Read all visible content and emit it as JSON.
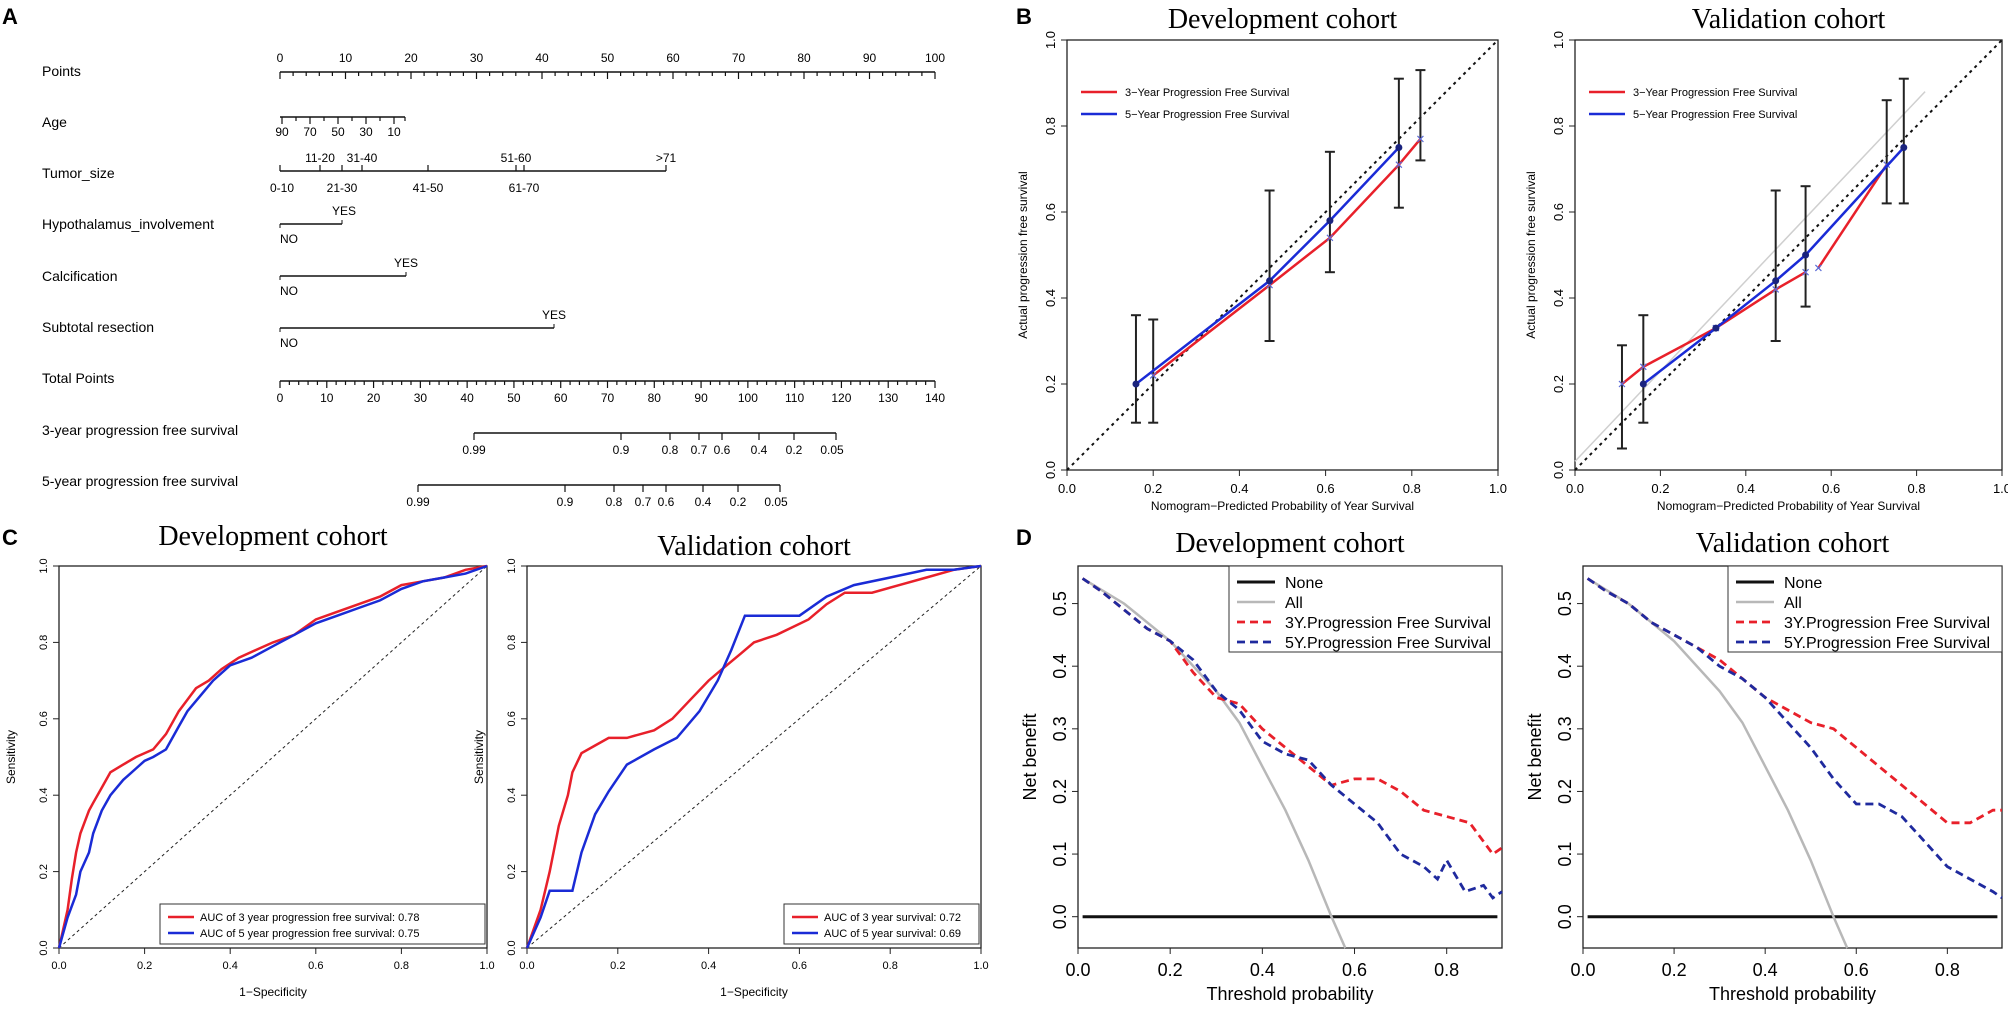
{
  "colors": {
    "red": "#e8202a",
    "blue": "#1a2bd6",
    "black": "#111111",
    "gray": "#b8b8b8",
    "navy": "#1a237e"
  },
  "panels": {
    "A": "A",
    "B": "B",
    "C": "C",
    "D": "D"
  },
  "nomogram": {
    "rows": [
      {
        "label": "Points"
      },
      {
        "label": "Age"
      },
      {
        "label": "Tumor_size"
      },
      {
        "label": "Hypothalamus_involvement"
      },
      {
        "label": "Calcification"
      },
      {
        "label": "Subtotal resection"
      },
      {
        "label": "Total Points"
      },
      {
        "label": "3-year progression free survival"
      },
      {
        "label": "5-year progression free survival"
      }
    ],
    "points_labels": [
      "0",
      "10",
      "20",
      "30",
      "40",
      "50",
      "60",
      "70",
      "80",
      "90",
      "100"
    ],
    "age_ticks": [
      "90",
      "70",
      "50",
      "30",
      "10"
    ],
    "tumor_upper": [
      "11-20",
      "31-40",
      "51-60",
      ">71"
    ],
    "tumor_lower": [
      "0-10",
      "21-30",
      "41-50",
      "61-70"
    ],
    "hypo": {
      "no": "NO",
      "yes": "YES"
    },
    "calc": {
      "no": "NO",
      "yes": "YES"
    },
    "subtotal": {
      "no": "NO",
      "yes": "YES"
    },
    "total_labels": [
      "0",
      "10",
      "20",
      "30",
      "40",
      "50",
      "60",
      "70",
      "80",
      "90",
      "100",
      "110",
      "120",
      "130",
      "140"
    ],
    "pfs3_ticks": [
      "0.99",
      "0.9",
      "0.8",
      "0.7",
      "0.6",
      "0.4",
      "0.2",
      "0.05"
    ],
    "pfs5_ticks": [
      "0.99",
      "0.9",
      "0.8",
      "0.7",
      "0.6",
      "0.4",
      "0.2",
      "0.05"
    ]
  },
  "chart_data": [
    {
      "id": "B-dev",
      "type": "line",
      "title": "Development cohort",
      "xlabel": "Nomogram−Predicted Probability of Year Survival",
      "ylabel": "Actual progression free survival",
      "xlim": [
        0,
        1
      ],
      "ylim": [
        0,
        1
      ],
      "xticks": [
        "0.0",
        "0.2",
        "0.4",
        "0.6",
        "0.8",
        "1.0"
      ],
      "yticks": [
        "0.0",
        "0.2",
        "0.4",
        "0.6",
        "0.8",
        "1.0"
      ],
      "legend": [
        "3−Year Progression Free Survival",
        "5−Year Progression Free Survival"
      ],
      "series": [
        {
          "name": "3-Year",
          "x": [
            0.2,
            0.47,
            0.61,
            0.77,
            0.82
          ],
          "y": [
            0.22,
            0.43,
            0.54,
            0.71,
            0.77
          ]
        },
        {
          "name": "5-Year",
          "x": [
            0.16,
            0.47,
            0.61,
            0.77
          ],
          "y": [
            0.2,
            0.44,
            0.58,
            0.75
          ]
        }
      ],
      "errorbars": [
        {
          "x": 0.16,
          "lo": 0.11,
          "hi": 0.36
        },
        {
          "x": 0.2,
          "lo": 0.11,
          "hi": 0.35
        },
        {
          "x": 0.47,
          "lo": 0.3,
          "hi": 0.65
        },
        {
          "x": 0.61,
          "lo": 0.46,
          "hi": 0.74
        },
        {
          "x": 0.77,
          "lo": 0.61,
          "hi": 0.91
        },
        {
          "x": 0.82,
          "lo": 0.72,
          "hi": 0.93
        }
      ]
    },
    {
      "id": "B-val",
      "type": "line",
      "title": "Validation cohort",
      "xlabel": "Nomogram−Predicted Probability of Year Survival",
      "ylabel": "Actual progression free survival",
      "xlim": [
        0,
        1
      ],
      "ylim": [
        0,
        1
      ],
      "xticks": [
        "0.0",
        "0.2",
        "0.4",
        "0.6",
        "0.8",
        "1.0"
      ],
      "yticks": [
        "0.0",
        "0.2",
        "0.4",
        "0.6",
        "0.8",
        "1.0"
      ],
      "legend": [
        "3−Year Progression Free Survival",
        "5−Year Progression Free Survival"
      ],
      "series": [
        {
          "name": "3-Year",
          "x": [
            0.11,
            0.16,
            0.33,
            0.47,
            0.54
          ],
          "y": [
            0.2,
            0.24,
            0.33,
            0.42,
            0.46
          ]
        },
        {
          "name": "3-Year-b",
          "x": [
            0.57,
            0.73
          ],
          "y": [
            0.47,
            0.71
          ]
        },
        {
          "name": "5-Year",
          "x": [
            0.16,
            0.33,
            0.47,
            0.54,
            0.77
          ],
          "y": [
            0.2,
            0.33,
            0.44,
            0.5,
            0.75
          ]
        }
      ],
      "errorbars": [
        {
          "x": 0.11,
          "lo": 0.05,
          "hi": 0.29
        },
        {
          "x": 0.16,
          "lo": 0.11,
          "hi": 0.36
        },
        {
          "x": 0.47,
          "lo": 0.3,
          "hi": 0.65
        },
        {
          "x": 0.54,
          "lo": 0.38,
          "hi": 0.66
        },
        {
          "x": 0.73,
          "lo": 0.62,
          "hi": 0.86
        },
        {
          "x": 0.77,
          "lo": 0.62,
          "hi": 0.91
        }
      ]
    },
    {
      "id": "C-dev",
      "type": "line",
      "title": "Development cohort",
      "xlabel": "1−Specificity",
      "ylabel": "Sensitivity",
      "xlim": [
        0,
        1
      ],
      "ylim": [
        0,
        1
      ],
      "xticks": [
        "0.0",
        "0.2",
        "0.4",
        "0.6",
        "0.8",
        "1.0"
      ],
      "yticks": [
        "0.0",
        "0.2",
        "0.4",
        "0.6",
        "0.8",
        "1.0"
      ],
      "legend": [
        "AUC of 3 year progression free survival:  0.78",
        "AUC of 5 year progression free survival:  0.75"
      ],
      "series": [
        {
          "name": "3-year",
          "x": [
            0,
            0.02,
            0.03,
            0.04,
            0.05,
            0.06,
            0.07,
            0.08,
            0.1,
            0.12,
            0.15,
            0.18,
            0.22,
            0.25,
            0.28,
            0.3,
            0.32,
            0.35,
            0.38,
            0.42,
            0.46,
            0.5,
            0.55,
            0.6,
            0.65,
            0.7,
            0.75,
            0.8,
            0.85,
            0.9,
            0.95,
            1.0
          ],
          "y": [
            0,
            0.1,
            0.18,
            0.25,
            0.3,
            0.33,
            0.36,
            0.38,
            0.42,
            0.46,
            0.48,
            0.5,
            0.52,
            0.56,
            0.62,
            0.65,
            0.68,
            0.7,
            0.73,
            0.76,
            0.78,
            0.8,
            0.82,
            0.86,
            0.88,
            0.9,
            0.92,
            0.95,
            0.96,
            0.97,
            0.99,
            1.0
          ]
        },
        {
          "name": "5-year",
          "x": [
            0,
            0.02,
            0.04,
            0.05,
            0.07,
            0.08,
            0.1,
            0.12,
            0.15,
            0.18,
            0.2,
            0.22,
            0.25,
            0.28,
            0.3,
            0.33,
            0.36,
            0.4,
            0.45,
            0.5,
            0.55,
            0.6,
            0.65,
            0.7,
            0.75,
            0.8,
            0.85,
            0.9,
            0.95,
            1.0
          ],
          "y": [
            0,
            0.08,
            0.14,
            0.2,
            0.25,
            0.3,
            0.36,
            0.4,
            0.44,
            0.47,
            0.49,
            0.5,
            0.52,
            0.58,
            0.62,
            0.66,
            0.7,
            0.74,
            0.76,
            0.79,
            0.82,
            0.85,
            0.87,
            0.89,
            0.91,
            0.94,
            0.96,
            0.97,
            0.98,
            1.0
          ]
        }
      ]
    },
    {
      "id": "C-val",
      "type": "line",
      "title": "Validation cohort",
      "xlabel": "1−Specificity",
      "ylabel": "Sensitivity",
      "xlim": [
        0,
        1
      ],
      "ylim": [
        0,
        1
      ],
      "xticks": [
        "0.0",
        "0.2",
        "0.4",
        "0.6",
        "0.8",
        "1.0"
      ],
      "yticks": [
        "0.0",
        "0.2",
        "0.4",
        "0.6",
        "0.8",
        "1.0"
      ],
      "legend": [
        "AUC of 3 year survival:  0.72",
        "AUC of 5 year survival:  0.69"
      ],
      "series": [
        {
          "name": "3-year",
          "x": [
            0,
            0.03,
            0.05,
            0.07,
            0.09,
            0.1,
            0.12,
            0.15,
            0.18,
            0.22,
            0.28,
            0.32,
            0.36,
            0.4,
            0.43,
            0.47,
            0.5,
            0.55,
            0.62,
            0.66,
            0.7,
            0.76,
            0.82,
            0.88,
            0.94,
            1.0
          ],
          "y": [
            0,
            0.1,
            0.2,
            0.32,
            0.4,
            0.46,
            0.51,
            0.53,
            0.55,
            0.55,
            0.57,
            0.6,
            0.65,
            0.7,
            0.73,
            0.77,
            0.8,
            0.82,
            0.86,
            0.9,
            0.93,
            0.93,
            0.95,
            0.97,
            0.99,
            1.0
          ]
        },
        {
          "name": "5-year",
          "x": [
            0,
            0.03,
            0.05,
            0.1,
            0.12,
            0.15,
            0.18,
            0.22,
            0.28,
            0.33,
            0.38,
            0.42,
            0.45,
            0.48,
            0.52,
            0.6,
            0.66,
            0.72,
            0.8,
            0.88,
            0.94,
            1.0
          ],
          "y": [
            0,
            0.08,
            0.15,
            0.15,
            0.25,
            0.35,
            0.41,
            0.48,
            0.52,
            0.55,
            0.62,
            0.7,
            0.78,
            0.87,
            0.87,
            0.87,
            0.92,
            0.95,
            0.97,
            0.99,
            0.99,
            1.0
          ]
        }
      ]
    },
    {
      "id": "D-dev",
      "type": "line",
      "title": "Development cohort",
      "xlabel": "Threshold probability",
      "ylabel": "Net benefit",
      "xlim": [
        0,
        0.92
      ],
      "ylim": [
        -0.05,
        0.56
      ],
      "xticks": [
        "0.0",
        "0.2",
        "0.4",
        "0.6",
        "0.8"
      ],
      "yticks": [
        "0.0",
        "0.1",
        "0.2",
        "0.3",
        "0.4",
        "0.5"
      ],
      "legend": [
        "None",
        "All",
        "3Y.Progression Free Survival",
        "5Y.Progression Free Survival"
      ],
      "series": [
        {
          "name": "None",
          "x": [
            0.01,
            0.91
          ],
          "y": [
            0,
            0
          ]
        },
        {
          "name": "All",
          "x": [
            0.01,
            0.1,
            0.2,
            0.3,
            0.35,
            0.4,
            0.45,
            0.5,
            0.55,
            0.58
          ],
          "y": [
            0.54,
            0.5,
            0.44,
            0.36,
            0.31,
            0.24,
            0.17,
            0.09,
            0.0,
            -0.05
          ]
        },
        {
          "name": "3Y",
          "x": [
            0.01,
            0.05,
            0.1,
            0.15,
            0.2,
            0.25,
            0.3,
            0.35,
            0.4,
            0.45,
            0.5,
            0.55,
            0.6,
            0.65,
            0.7,
            0.75,
            0.8,
            0.85,
            0.9,
            0.92
          ],
          "y": [
            0.54,
            0.52,
            0.49,
            0.46,
            0.44,
            0.39,
            0.35,
            0.34,
            0.3,
            0.27,
            0.24,
            0.21,
            0.22,
            0.22,
            0.2,
            0.17,
            0.16,
            0.15,
            0.1,
            0.11
          ]
        },
        {
          "name": "5Y",
          "x": [
            0.01,
            0.05,
            0.1,
            0.15,
            0.2,
            0.25,
            0.3,
            0.35,
            0.4,
            0.45,
            0.5,
            0.55,
            0.6,
            0.65,
            0.7,
            0.75,
            0.78,
            0.8,
            0.84,
            0.88,
            0.9,
            0.92
          ],
          "y": [
            0.54,
            0.52,
            0.49,
            0.46,
            0.44,
            0.41,
            0.36,
            0.33,
            0.28,
            0.26,
            0.25,
            0.21,
            0.18,
            0.15,
            0.1,
            0.08,
            0.06,
            0.09,
            0.04,
            0.05,
            0.03,
            0.04
          ]
        }
      ]
    },
    {
      "id": "D-val",
      "type": "line",
      "title": "Validation cohort",
      "xlabel": "Threshold probability",
      "ylabel": "Net benefit",
      "xlim": [
        0,
        0.92
      ],
      "ylim": [
        -0.05,
        0.56
      ],
      "xticks": [
        "0.0",
        "0.2",
        "0.4",
        "0.6",
        "0.8"
      ],
      "yticks": [
        "0.0",
        "0.1",
        "0.2",
        "0.3",
        "0.4",
        "0.5"
      ],
      "legend": [
        "None",
        "All",
        "3Y.Progression Free Survival",
        "5Y.Progression Free Survival"
      ],
      "series": [
        {
          "name": "None",
          "x": [
            0.01,
            0.91
          ],
          "y": [
            0,
            0
          ]
        },
        {
          "name": "All",
          "x": [
            0.01,
            0.1,
            0.2,
            0.3,
            0.35,
            0.4,
            0.45,
            0.5,
            0.55,
            0.58
          ],
          "y": [
            0.54,
            0.5,
            0.44,
            0.36,
            0.31,
            0.24,
            0.17,
            0.09,
            0.0,
            -0.05
          ]
        },
        {
          "name": "3Y",
          "x": [
            0.01,
            0.05,
            0.1,
            0.15,
            0.2,
            0.25,
            0.3,
            0.35,
            0.4,
            0.45,
            0.5,
            0.55,
            0.6,
            0.65,
            0.7,
            0.75,
            0.8,
            0.85,
            0.9,
            0.92
          ],
          "y": [
            0.54,
            0.52,
            0.5,
            0.47,
            0.45,
            0.43,
            0.41,
            0.38,
            0.35,
            0.33,
            0.31,
            0.3,
            0.27,
            0.24,
            0.21,
            0.18,
            0.15,
            0.15,
            0.17,
            0.17
          ]
        },
        {
          "name": "5Y",
          "x": [
            0.01,
            0.05,
            0.1,
            0.15,
            0.2,
            0.25,
            0.3,
            0.35,
            0.4,
            0.45,
            0.5,
            0.55,
            0.6,
            0.65,
            0.7,
            0.75,
            0.8,
            0.85,
            0.9,
            0.92
          ],
          "y": [
            0.54,
            0.52,
            0.5,
            0.47,
            0.45,
            0.43,
            0.4,
            0.38,
            0.35,
            0.31,
            0.27,
            0.22,
            0.18,
            0.18,
            0.16,
            0.12,
            0.08,
            0.06,
            0.04,
            0.03
          ]
        }
      ]
    }
  ]
}
